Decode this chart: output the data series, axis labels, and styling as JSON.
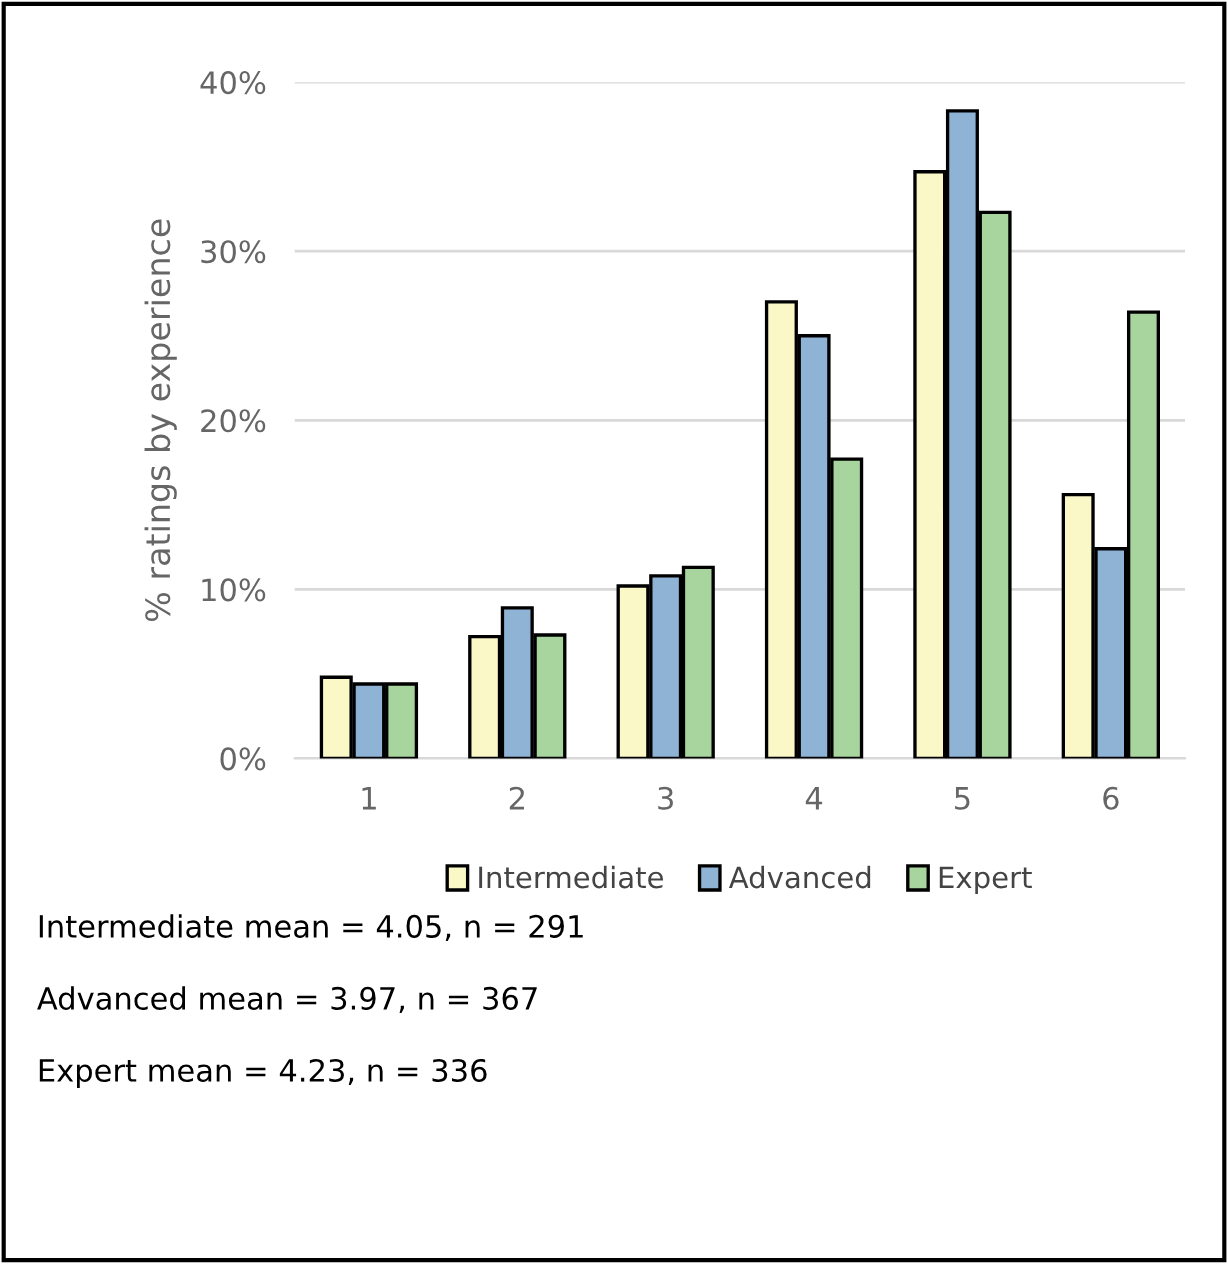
{
  "chart_data": {
    "type": "bar",
    "ylabel": "% ratings by experience",
    "categories": [
      "1",
      "2",
      "3",
      "4",
      "5",
      "6"
    ],
    "series": [
      {
        "name": "Intermediate",
        "color": "#fbf8c8",
        "values": [
          4.8,
          7.2,
          10.2,
          27.0,
          34.7,
          15.6
        ]
      },
      {
        "name": "Advanced",
        "color": "#8fb3d4",
        "values": [
          4.4,
          8.9,
          10.8,
          25.0,
          38.3,
          12.4
        ]
      },
      {
        "name": "Expert",
        "color": "#a8d49e",
        "values": [
          4.4,
          7.3,
          11.3,
          17.7,
          32.3,
          26.4
        ]
      }
    ],
    "ylim": [
      0,
      40
    ],
    "yticks": [
      {
        "value": 0,
        "label": "0%"
      },
      {
        "value": 10,
        "label": "10%"
      },
      {
        "value": 20,
        "label": "20%"
      },
      {
        "value": 30,
        "label": "30%"
      },
      {
        "value": 40,
        "label": "40%"
      }
    ],
    "grid": "y",
    "legend": "bottom",
    "annotations": [
      "Intermediate mean = 4.05, n = 291",
      "Advanced mean = 3.97, n = 367",
      "Expert mean = 4.23, n = 336"
    ]
  }
}
